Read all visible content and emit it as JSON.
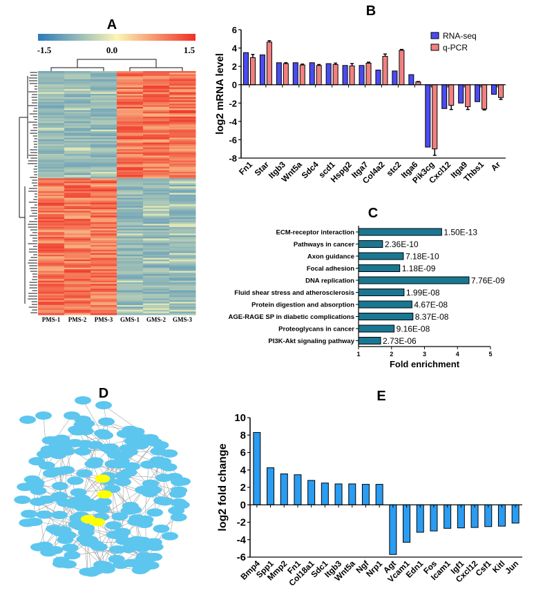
{
  "panels": {
    "a": {
      "letter": "A"
    },
    "b": {
      "letter": "B"
    },
    "c": {
      "letter": "C"
    },
    "d": {
      "letter": "D"
    },
    "e": {
      "letter": "E"
    }
  },
  "heatmap": {
    "type": "heatmap",
    "colorbar_ticks": [
      "-1.5",
      "0.0",
      "1.5"
    ],
    "colorbar_range": [
      -1.5,
      1.5
    ],
    "colors": {
      "low": "#2b7bba",
      "mid": "#fbf6b5",
      "high": "#f03024"
    },
    "columns": [
      "PMS-1",
      "PMS-2",
      "PMS-3",
      "GMS-1",
      "GMS-2",
      "GMS-3"
    ]
  },
  "network": {
    "colors": {
      "node": "#5cc6ee",
      "hub": "#ffff00",
      "edge": "#888888"
    }
  },
  "chart_data": [
    {
      "id": "b",
      "type": "bar",
      "ylabel": "log2 mRNA level",
      "ylim": [
        -8,
        6
      ],
      "yticks": [
        "6",
        "4",
        "2",
        "0",
        "-2",
        "-4",
        "-6",
        "-8"
      ],
      "legend_position": "top-right",
      "categories": [
        "Fn1",
        "Star",
        "Itgb3",
        "Wnt5a",
        "Sdc4",
        "scd1",
        "Hspg2",
        "Itga7",
        "Col4a2",
        "stc2",
        "Itga6",
        "Pik3cg",
        "Cxcl12",
        "Itga9",
        "Thbs1",
        "Ar"
      ],
      "series": [
        {
          "name": "RNA-seq",
          "color": "#4b4bf2",
          "values": [
            3.5,
            3.25,
            2.4,
            2.4,
            2.4,
            2.3,
            2.1,
            2.1,
            1.6,
            1.5,
            1.1,
            -6.8,
            -2.6,
            -2.0,
            -1.85,
            -1.05
          ]
        },
        {
          "name": "q-PCR",
          "color": "#f28080",
          "values": [
            2.95,
            4.65,
            2.3,
            2.15,
            2.1,
            2.2,
            2.05,
            2.35,
            3.1,
            3.75,
            0.3,
            -7.0,
            -2.25,
            -2.4,
            -2.65,
            -1.4
          ],
          "errors": [
            0.35,
            0.15,
            0.1,
            0.1,
            0.1,
            0.15,
            0.25,
            0.1,
            0.25,
            0.1,
            0.05,
            0.7,
            0.45,
            0.3,
            0.1,
            0.2
          ]
        }
      ]
    },
    {
      "id": "c",
      "type": "bar",
      "orientation": "horizontal",
      "xlabel": "Fold enrichment",
      "xlim": [
        1,
        5
      ],
      "xticks": [
        "1",
        "2",
        "3",
        "4",
        "5"
      ],
      "color": "#1a7792",
      "categories": [
        "ECM-receptor interaction",
        "Pathways in cancer",
        "Axon guidance",
        "Focal adhesion",
        "DNA replication",
        "Fluid shear stress and atherosclerosis",
        "Protein digestion and absorption",
        "AGE-RAGE SP in diabetic complications",
        "Proteoglycans in cancer",
        "PI3K-Akt signaling pathway"
      ],
      "values": [
        3.52,
        1.73,
        2.36,
        2.25,
        4.35,
        2.38,
        2.62,
        2.65,
        2.08,
        1.67
      ],
      "labels": [
        "1.50E-13",
        "2.36E-10",
        "7.18E-10",
        "1.18E-09",
        "7.76E-09",
        "1.99E-08",
        "4.67E-08",
        "8.37E-08",
        "9.16E-08",
        "2.73E-06"
      ]
    },
    {
      "id": "e",
      "type": "bar",
      "ylabel": "log2 fold change",
      "ylim": [
        -6,
        10
      ],
      "yticks": [
        "10",
        "8",
        "6",
        "4",
        "2",
        "0",
        "-2",
        "-4",
        "-6"
      ],
      "color": "#2a9cf2",
      "categories": [
        "Bmp4",
        "Spp1",
        "Mmp2",
        "Fn1",
        "Col18a1",
        "Sdc1",
        "Itgb3",
        "Wnt5a",
        "Ngf",
        "Nrp1",
        "Agt",
        "Vcam1",
        "Edn1",
        "Fos",
        "Icam1",
        "Igf1",
        "Cxcl12",
        "Csf1",
        "Kitl",
        "Jun"
      ],
      "values": [
        8.3,
        4.25,
        3.55,
        3.45,
        2.8,
        2.5,
        2.4,
        2.4,
        2.35,
        2.35,
        -5.7,
        -4.3,
        -3.15,
        -3.0,
        -2.7,
        -2.65,
        -2.6,
        -2.5,
        -2.45,
        -2.1
      ]
    }
  ]
}
